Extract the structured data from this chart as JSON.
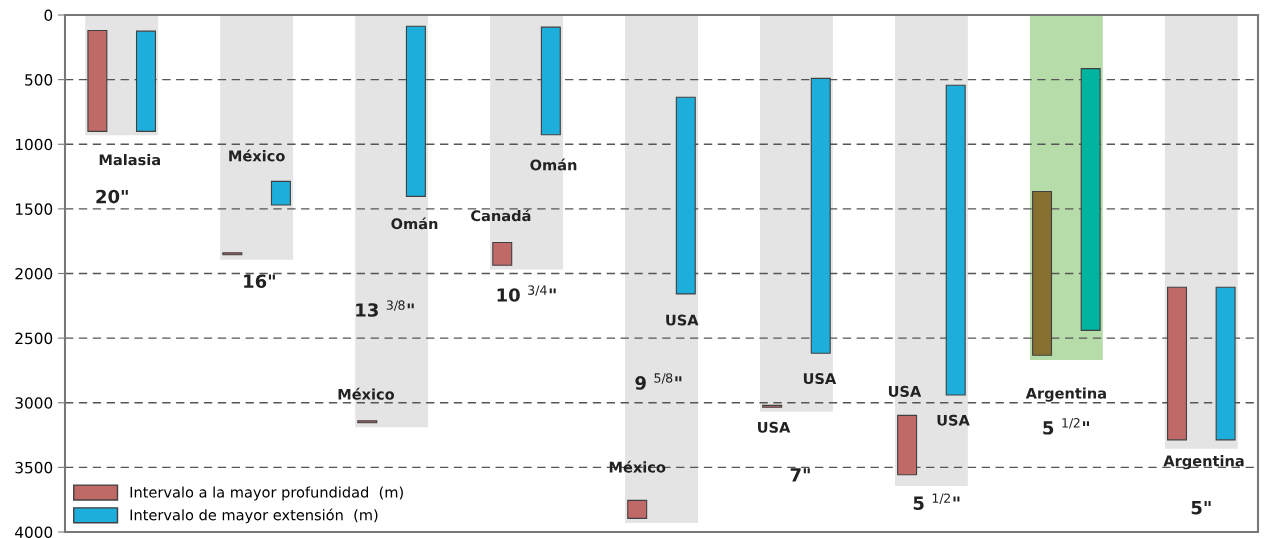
{
  "chart_data": {
    "type": "bar",
    "categories": [
      null,
      null,
      null,
      null,
      null,
      null,
      null,
      null,
      null
    ],
    "ylim": [
      4000,
      0
    ],
    "yticks": [
      0,
      500,
      1000,
      1500,
      2000,
      2500,
      3000,
      3500,
      4000
    ],
    "tick_labels": "y",
    "grid": "y",
    "line_style": "dashed",
    "legend": "bottom left",
    "series": [
      {
        "colors": [
          "#e4e4e4",
          "#e4e4e4",
          "#e4e4e4",
          "#e4e4e4",
          "#e4e4e4",
          "#e4e4e4",
          "#e4e4e4",
          "#b6dcaa",
          "#e4e4e4"
        ],
        "values": [
          930,
          1893,
          3190,
          1970,
          3930,
          3070,
          3645,
          2670,
          3355
        ]
      },
      {
        "name": "Intervalo a la mayor profundidad  (m)",
        "color": "#c06a68",
        "colors": [
          "#c06a68",
          "#c06a68",
          "#c06a68",
          "#c06a68",
          "#c06a68",
          "#c06a68",
          "#c06a68",
          "#857030",
          "#c06a68"
        ],
        "base": [
          120,
          1840,
          3140,
          1760,
          3755,
          3020,
          3098,
          1366,
          2106
        ],
        "values": [
          780,
          15,
          15,
          176,
          140,
          15,
          459,
          1267,
          1181
        ]
      },
      {
        "name": "Intervalo de mayor extensión  (m)",
        "color": "#1eaedb",
        "colors": [
          "#1eaedb",
          "#1eaedb",
          "#1eaedb",
          "#1eaedb",
          "#1eaedb",
          "#1eaedb",
          "#1eaedb",
          "#00b4a0",
          "#1eaedb"
        ],
        "base": [
          125,
          1287,
          87,
          94,
          636,
          490,
          543,
          415,
          2106
        ],
        "values": [
          775,
          183,
          1316,
          833,
          1522,
          2127,
          2397,
          2025,
          1181
        ]
      }
    ],
    "annotations": [
      "Malasia",
      "20\"",
      "México",
      "16\"",
      "Omán",
      "13 $^{3/8}$\"",
      "México",
      "Canadá",
      "Omán",
      "10 $^{3/4}$\"",
      "USA",
      "9 $^{5/8}$\"",
      "México",
      "USA",
      "USA",
      "7\"",
      "USA",
      "USA",
      "5 $^{1/2}$\"",
      "Argentina",
      "5 $^{1/2}$\"",
      "Argentina",
      "5\""
    ]
  }
}
